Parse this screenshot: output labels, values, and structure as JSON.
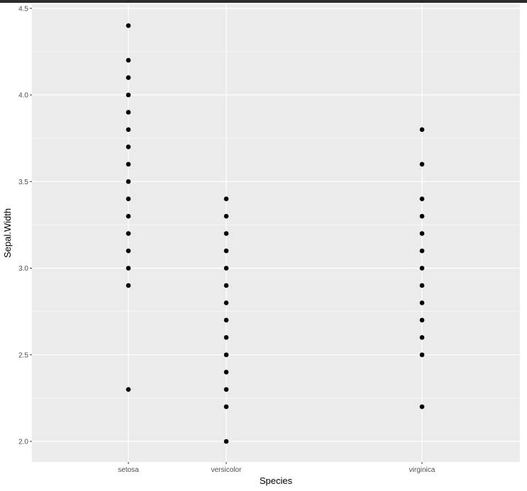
{
  "chart_data": {
    "type": "scatter",
    "title": "",
    "xlabel": "Species",
    "ylabel": "Sepal.Width",
    "categories": [
      "setosa",
      "versicolor",
      "virginica"
    ],
    "ylim": [
      1.88,
      4.5
    ],
    "y_ticks": [
      2.0,
      2.5,
      3.0,
      3.5,
      4.0,
      4.5
    ],
    "y_tick_labels": [
      "2.0",
      "2.5",
      "3.0",
      "3.5",
      "4.0",
      "4.5"
    ],
    "grid": true,
    "legend": "none",
    "points": [
      {
        "x": "setosa",
        "y": 4.4
      },
      {
        "x": "setosa",
        "y": 4.2
      },
      {
        "x": "setosa",
        "y": 4.1
      },
      {
        "x": "setosa",
        "y": 4.0
      },
      {
        "x": "setosa",
        "y": 3.9
      },
      {
        "x": "setosa",
        "y": 3.8
      },
      {
        "x": "setosa",
        "y": 3.7
      },
      {
        "x": "setosa",
        "y": 3.6
      },
      {
        "x": "setosa",
        "y": 3.5
      },
      {
        "x": "setosa",
        "y": 3.4
      },
      {
        "x": "setosa",
        "y": 3.3
      },
      {
        "x": "setosa",
        "y": 3.2
      },
      {
        "x": "setosa",
        "y": 3.1
      },
      {
        "x": "setosa",
        "y": 3.0
      },
      {
        "x": "setosa",
        "y": 2.9
      },
      {
        "x": "setosa",
        "y": 2.3
      },
      {
        "x": "versicolor",
        "y": 3.4
      },
      {
        "x": "versicolor",
        "y": 3.3
      },
      {
        "x": "versicolor",
        "y": 3.2
      },
      {
        "x": "versicolor",
        "y": 3.1
      },
      {
        "x": "versicolor",
        "y": 3.0
      },
      {
        "x": "versicolor",
        "y": 2.9
      },
      {
        "x": "versicolor",
        "y": 2.8
      },
      {
        "x": "versicolor",
        "y": 2.7
      },
      {
        "x": "versicolor",
        "y": 2.6
      },
      {
        "x": "versicolor",
        "y": 2.5
      },
      {
        "x": "versicolor",
        "y": 2.4
      },
      {
        "x": "versicolor",
        "y": 2.3
      },
      {
        "x": "versicolor",
        "y": 2.2
      },
      {
        "x": "versicolor",
        "y": 2.0
      },
      {
        "x": "virginica",
        "y": 3.8
      },
      {
        "x": "virginica",
        "y": 3.6
      },
      {
        "x": "virginica",
        "y": 3.4
      },
      {
        "x": "virginica",
        "y": 3.3
      },
      {
        "x": "virginica",
        "y": 3.2
      },
      {
        "x": "virginica",
        "y": 3.1
      },
      {
        "x": "virginica",
        "y": 3.0
      },
      {
        "x": "virginica",
        "y": 2.9
      },
      {
        "x": "virginica",
        "y": 2.8
      },
      {
        "x": "virginica",
        "y": 2.7
      },
      {
        "x": "virginica",
        "y": 2.6
      },
      {
        "x": "virginica",
        "y": 2.5
      },
      {
        "x": "virginica",
        "y": 2.2
      }
    ],
    "colors": {
      "panel": "#ebebeb",
      "grid": "#ffffff",
      "point": "#000000",
      "tick_text": "#4d4d4d"
    }
  }
}
